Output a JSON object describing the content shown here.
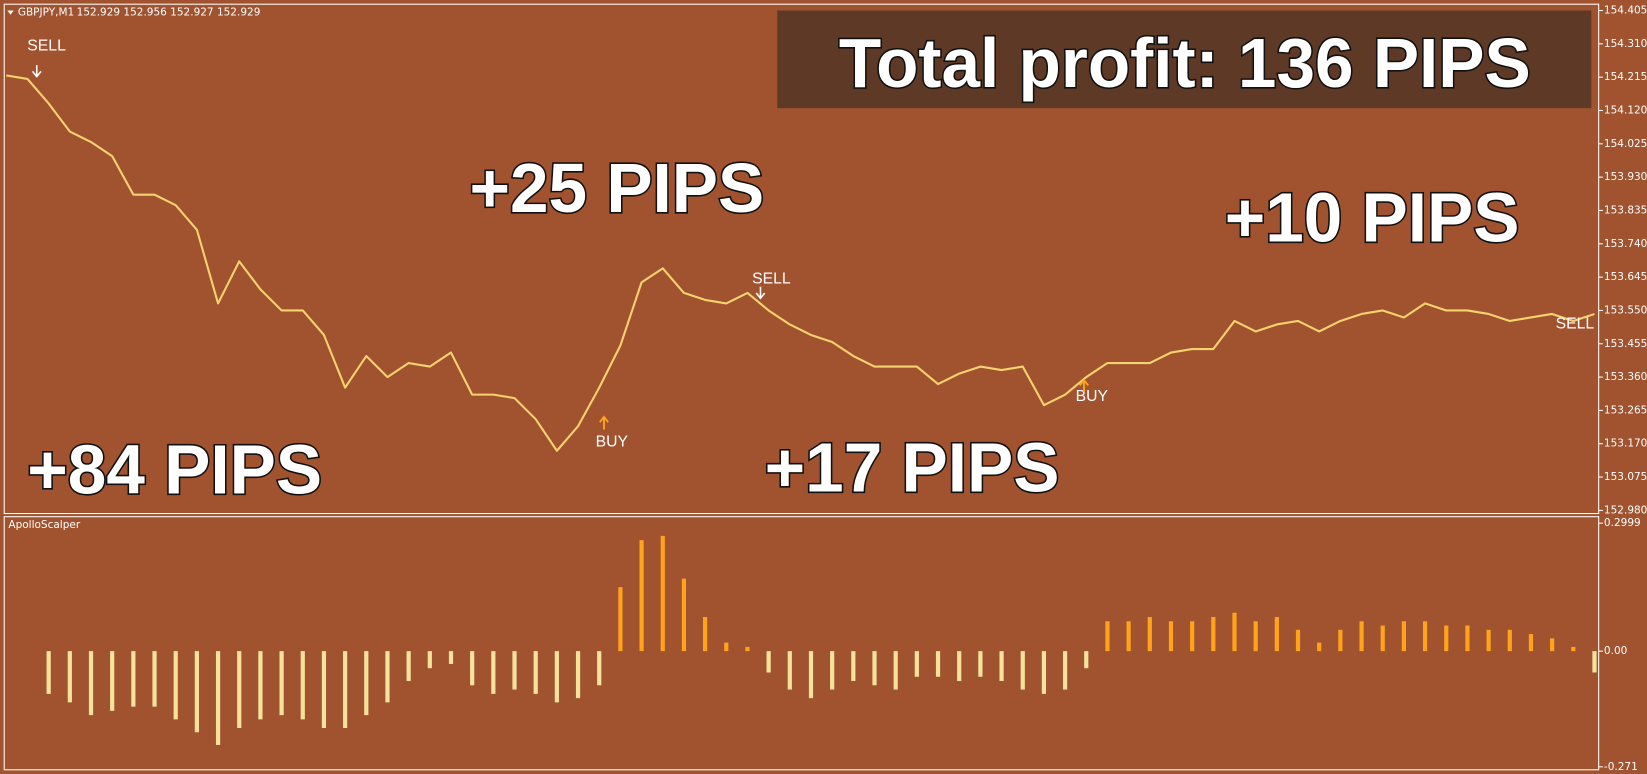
{
  "header": {
    "symbol": "GBPJPY,M1",
    "quote": "152.929 152.956 152.927 152.929"
  },
  "chart_data": [
    {
      "type": "line",
      "color": "#f6d36e",
      "ylim": [
        152.971,
        154.423
      ],
      "yticks": [
        154.405,
        {
          "value": 154.31,
          "label": "154.310"
        },
        154.215,
        {
          "value": 154.12,
          "label": "154.120"
        },
        154.025,
        {
          "value": 153.93,
          "label": "153.930"
        },
        153.835,
        {
          "value": 153.74,
          "label": "153.740"
        },
        153.645,
        {
          "value": 153.55,
          "label": "153.550"
        },
        153.455,
        {
          "value": 153.36,
          "label": "153.360"
        },
        153.265,
        {
          "value": 153.17,
          "label": "153.170"
        },
        153.075,
        {
          "value": 152.98,
          "label": "152.980"
        }
      ],
      "values": [
        154.22,
        154.21,
        154.14,
        154.06,
        154.03,
        153.99,
        153.88,
        153.88,
        153.85,
        153.78,
        153.57,
        153.69,
        153.61,
        153.55,
        153.55,
        153.48,
        153.33,
        153.42,
        153.36,
        153.4,
        153.39,
        153.43,
        153.31,
        153.31,
        153.3,
        153.24,
        153.15,
        153.22,
        153.33,
        153.45,
        153.63,
        153.67,
        153.6,
        153.58,
        153.57,
        153.6,
        153.55,
        153.51,
        153.48,
        153.46,
        153.42,
        153.39,
        153.39,
        153.39,
        153.34,
        153.37,
        153.39,
        153.38,
        153.39,
        153.28,
        153.31,
        153.36,
        153.4,
        153.4,
        153.4,
        153.43,
        153.44,
        153.44,
        153.52,
        153.49,
        153.51,
        153.52,
        153.49,
        153.52,
        153.54,
        153.55,
        153.53,
        153.57,
        153.55,
        153.55,
        153.54,
        153.52,
        153.53,
        153.54,
        153.52,
        153.54
      ]
    },
    {
      "type": "bar",
      "title": "ApolloScalper",
      "colors": {
        "up": "#ffa31a",
        "down": "#f5e39c"
      },
      "ylim": [
        -0.278,
        0.315
      ],
      "yticks": [
        0.2999,
        {
          "value": 0,
          "label": "0.00"
        },
        -0.271
      ],
      "values": [
        0,
        0,
        -0.1,
        -0.12,
        -0.15,
        -0.14,
        -0.13,
        -0.13,
        -0.16,
        -0.19,
        -0.22,
        -0.18,
        -0.16,
        -0.15,
        -0.16,
        -0.18,
        -0.18,
        -0.15,
        -0.12,
        -0.07,
        -0.04,
        -0.03,
        -0.08,
        -0.1,
        -0.09,
        -0.1,
        -0.12,
        -0.11,
        -0.08,
        0.15,
        0.26,
        0.27,
        0.17,
        0.08,
        0.02,
        0.01,
        -0.05,
        -0.09,
        -0.11,
        -0.09,
        -0.07,
        -0.08,
        -0.09,
        -0.06,
        -0.06,
        -0.07,
        -0.06,
        -0.07,
        -0.09,
        -0.1,
        -0.09,
        -0.04,
        0.07,
        0.07,
        0.08,
        0.07,
        0.07,
        0.08,
        0.09,
        0.07,
        0.08,
        0.05,
        0.02,
        0.05,
        0.07,
        0.06,
        0.07,
        0.07,
        0.06,
        0.06,
        0.05,
        0.05,
        0.04,
        0.03,
        0.01,
        -0.05
      ]
    }
  ],
  "signals": [
    "SELL",
    "BUY",
    "SELL",
    "BUY",
    "SELL"
  ],
  "annotations": {
    "total": "Total profit: 136 PIPS",
    "a": "+84 PIPS",
    "b": "+25 PIPS",
    "c": "+17 PIPS",
    "d": "+10 PIPS"
  }
}
